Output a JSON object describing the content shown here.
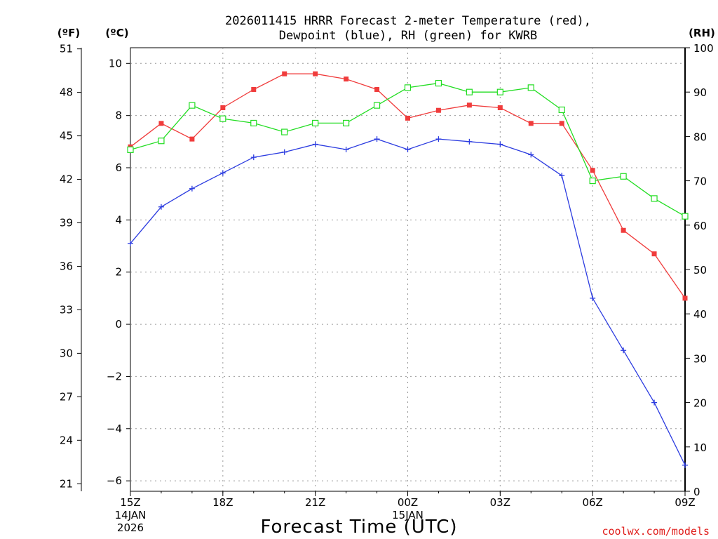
{
  "chart_data": {
    "type": "line",
    "title_line1": "2026011415 HRRR Forecast 2-meter Temperature (red),",
    "title_line2": "Dewpoint (blue), RH (green) for KWRB",
    "xlabel": "Forecast Time (UTC)",
    "credit": "coolwx.com/models",
    "units": {
      "fahrenheit": "(ºF)",
      "celsius": "(ºC)",
      "rh": "(RH)"
    },
    "x_hours": [
      0,
      1,
      2,
      3,
      4,
      5,
      6,
      7,
      8,
      9,
      10,
      11,
      12,
      13,
      14,
      15,
      16,
      17,
      18
    ],
    "x_range": [
      0,
      18
    ],
    "x_ticks": [
      {
        "hour": 0,
        "label": "15Z",
        "sub1": "14JAN",
        "sub2": "2026"
      },
      {
        "hour": 3,
        "label": "18Z",
        "sub1": "",
        "sub2": ""
      },
      {
        "hour": 6,
        "label": "21Z",
        "sub1": "",
        "sub2": ""
      },
      {
        "hour": 9,
        "label": "00Z",
        "sub1": "15JAN",
        "sub2": ""
      },
      {
        "hour": 12,
        "label": "03Z",
        "sub1": "",
        "sub2": ""
      },
      {
        "hour": 15,
        "label": "06Z",
        "sub1": "",
        "sub2": ""
      },
      {
        "hour": 18,
        "label": "09Z",
        "sub1": "",
        "sub2": ""
      }
    ],
    "celsius_axis": {
      "range": [
        -6.4,
        10.6
      ],
      "ticks": [
        -6,
        -4,
        -2,
        0,
        2,
        4,
        6,
        8,
        10
      ]
    },
    "fahrenheit_axis": {
      "ticks": [
        21,
        24,
        27,
        30,
        33,
        36,
        39,
        42,
        45,
        48,
        51
      ]
    },
    "rh_axis": {
      "range": [
        0,
        100
      ],
      "ticks": [
        0,
        10,
        20,
        30,
        40,
        50,
        60,
        70,
        80,
        90,
        100
      ]
    },
    "series": [
      {
        "name": "Temperature",
        "color": "#f03c3c",
        "axis": "celsius",
        "marker": "filled-square",
        "values": [
          6.8,
          7.7,
          7.1,
          8.3,
          9.0,
          9.6,
          9.6,
          9.4,
          9.0,
          7.9,
          8.2,
          8.4,
          8.3,
          7.7,
          7.7,
          5.9,
          3.6,
          2.7,
          1.0
        ]
      },
      {
        "name": "Dewpoint",
        "color": "#2c3ce0",
        "axis": "celsius",
        "marker": "plus",
        "values": [
          3.1,
          4.5,
          5.2,
          5.8,
          6.4,
          6.6,
          6.9,
          6.7,
          7.1,
          6.7,
          7.1,
          7.0,
          6.9,
          6.5,
          5.7,
          1.0,
          -1.0,
          -3.0,
          -5.4
        ]
      },
      {
        "name": "RH",
        "color": "#22dd22",
        "axis": "rh",
        "marker": "open-square",
        "values": [
          77,
          79,
          87,
          84,
          83,
          81,
          83,
          83,
          87,
          91,
          92,
          90,
          90,
          91,
          86,
          70,
          71,
          66,
          62
        ]
      }
    ]
  }
}
